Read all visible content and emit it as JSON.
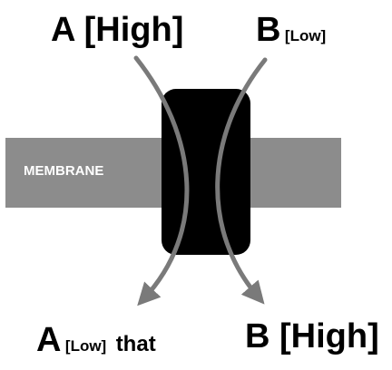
{
  "membrane": {
    "label": "MEMBRANE"
  },
  "top_left": {
    "letter": "A",
    "level": "[High]"
  },
  "top_right": {
    "letter": "B",
    "level": "[Low]"
  },
  "bottom_left": {
    "letter": "A",
    "level": "[Low]",
    "extra": "that"
  },
  "bottom_right": {
    "letter": "B",
    "level": "[High]"
  },
  "colors": {
    "membrane": "#8c8c8c",
    "transporter": "#000000",
    "arrows": "#7a7a7a",
    "text": "#000000",
    "membrane_text": "#ffffff"
  }
}
